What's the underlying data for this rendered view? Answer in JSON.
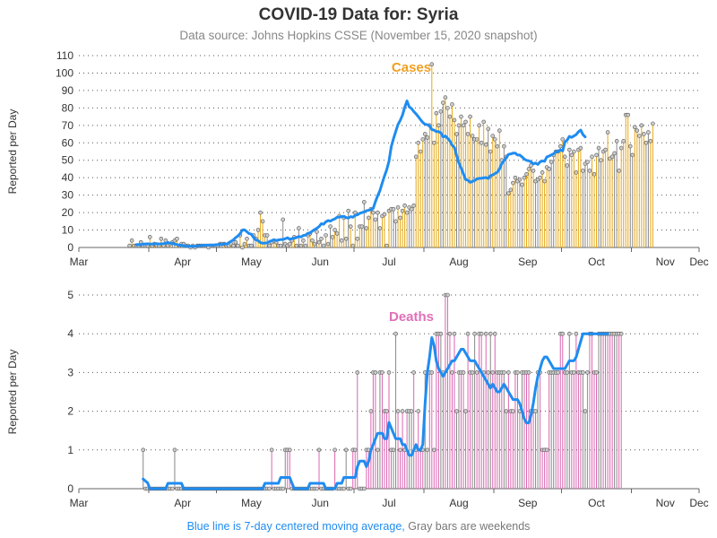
{
  "title": "COVID-19 Data for: Syria",
  "subtitle": "Data source: Johns Hopkins CSSE (November 15, 2020 snapshot)",
  "footnote": {
    "blue": "Blue line is 7-day centered moving average,",
    "gray": "Gray bars are weekends"
  },
  "colors": {
    "cases_bar": "#e6a817",
    "deaths_bar": "#d966b0",
    "weekend_bar": "#888888",
    "moving_avg": "#1f8cf0",
    "cases_label": "#f0a020",
    "deaths_label": "#e070b8",
    "marker_fill": "#cccccc",
    "grid": "#555555"
  },
  "chart_data": [
    {
      "type": "bar",
      "title": "Cases",
      "ylabel": "Reported per Day",
      "ylim": [
        0,
        110
      ],
      "yticks": [
        0,
        10,
        20,
        30,
        40,
        50,
        60,
        70,
        80,
        90,
        100,
        110
      ],
      "x_domain": [
        "2020-03-01",
        "2020-12-01"
      ],
      "x_tick_labels": [
        "Mar",
        "Apr",
        "May",
        "Jun",
        "Jul",
        "Aug",
        "Sep",
        "Oct",
        "Nov",
        "Dec"
      ],
      "grid": "horizontal dotted",
      "daily": {
        "start_date": "2020-03-23",
        "values": [
          1,
          4,
          1,
          1,
          1,
          3,
          1,
          1,
          1,
          6,
          1,
          2,
          1,
          1,
          5,
          1,
          4,
          1,
          2,
          3,
          4,
          5,
          1,
          2,
          2,
          1,
          1,
          0,
          1,
          0,
          1,
          1,
          1,
          1,
          1,
          0,
          1,
          1,
          1,
          1,
          2,
          2,
          2,
          1,
          1,
          2,
          1,
          3,
          1,
          7,
          0,
          2,
          5,
          1,
          1,
          7,
          5,
          10,
          20,
          15,
          7,
          7,
          1,
          3,
          4,
          3,
          1,
          1,
          16,
          2,
          1,
          2,
          4,
          6,
          1,
          11,
          1,
          4,
          1,
          7,
          8,
          4,
          2,
          9,
          3,
          5,
          1,
          7,
          2,
          12,
          6,
          10,
          8,
          18,
          4,
          17,
          5,
          21,
          12,
          1,
          20,
          5,
          12,
          12,
          26,
          11,
          17,
          22,
          20,
          16,
          20,
          11,
          18,
          19,
          1,
          21,
          22,
          22,
          15,
          23,
          17,
          21,
          24,
          20,
          23,
          22,
          24,
          52,
          60,
          55,
          62,
          65,
          63,
          70,
          105,
          60,
          77,
          70,
          78,
          83,
          86,
          80,
          75,
          82,
          73,
          65,
          70,
          75,
          70,
          72,
          65,
          75,
          64,
          62,
          62,
          70,
          60,
          72,
          59,
          68,
          55,
          64,
          62,
          58,
          67,
          50,
          58,
          52,
          31,
          33,
          37,
          40,
          38,
          39,
          36,
          40,
          42,
          45,
          47,
          44,
          38,
          39,
          40,
          43,
          38,
          46,
          45,
          49,
          53,
          55,
          55,
          58,
          62,
          52,
          47,
          56,
          53,
          55,
          43,
          56,
          57,
          44,
          48,
          49,
          44,
          52,
          42,
          53,
          57,
          50,
          55,
          56,
          66,
          51,
          52,
          54,
          61,
          44,
          57,
          61,
          76,
          76,
          58,
          53,
          69,
          67,
          64,
          70,
          65,
          60,
          66,
          61,
          71
        ]
      },
      "moving_average": {
        "start_date": "2020-03-26",
        "values": [
          1.7,
          1.7,
          1.7,
          2.0,
          2.0,
          2.1,
          1.9,
          2.0,
          2.0,
          2.2,
          2.0,
          2.1,
          2.2,
          2.4,
          2.9,
          2.4,
          2.4,
          1.9,
          1.7,
          1.3,
          1.3,
          1.0,
          0.7,
          0.7,
          0.7,
          0.7,
          0.7,
          1.0,
          1.1,
          1.1,
          1.3,
          1.3,
          1.4,
          1.4,
          1.3,
          1.6,
          1.6,
          1.9,
          1.7,
          2.1,
          1.9,
          2.7,
          3.6,
          4.3,
          5.6,
          6.6,
          7.9,
          10.0,
          10.1,
          9.0,
          7.9,
          7.6,
          5.6,
          4.3,
          3.9,
          2.8,
          2.4,
          2.5,
          2.6,
          3.4,
          3.9,
          4.4,
          4.0,
          4.3,
          4.6,
          4.6,
          5.0,
          5.6,
          4.7,
          5.1,
          5.3,
          5.7,
          6.3,
          6.0,
          6.9,
          7.1,
          8.1,
          8.4,
          9.3,
          10.3,
          11.0,
          12.0,
          13.6,
          13.3,
          14.7,
          15.4,
          15.1,
          15.9,
          16.4,
          17.3,
          17.4,
          17.7,
          17.9,
          17.1,
          16.9,
          17.7,
          17.3,
          18.4,
          18.7,
          19.6,
          20.0,
          20.4,
          21.0,
          21.4,
          21.7,
          22.4,
          26.3,
          29.7,
          32.6,
          37.0,
          41.0,
          44.6,
          49.4,
          57.6,
          62.3,
          66.4,
          70.6,
          72.9,
          75.9,
          80.4,
          84.0,
          80.6,
          79.6,
          77.9,
          76.6,
          75.0,
          73.3,
          71.7,
          70.6,
          70.4,
          69.7,
          67.6,
          67.3,
          66.4,
          66.4,
          65.7,
          63.4,
          63.9,
          62.6,
          61.1,
          58.6,
          57.3,
          52.6,
          48.6,
          45.6,
          42.3,
          38.9,
          38.6,
          37.3,
          37.9,
          38.4,
          39.3,
          39.6,
          39.7,
          39.9,
          40.1,
          39.6,
          41.1,
          41.6,
          42.4,
          43.1,
          45.0,
          48.1,
          49.7,
          51.4,
          53.4,
          53.6,
          54.1,
          54.1,
          53.0,
          53.0,
          51.9,
          50.7,
          49.9,
          49.7,
          49.1,
          47.9,
          48.4,
          47.6,
          49.1,
          49.6,
          49.4,
          51.9,
          52.4,
          53.1,
          53.7,
          55.0,
          55.0,
          55.9,
          55.3,
          60.4,
          61.6,
          63.7,
          63.1,
          63.9,
          64.7,
          66.3,
          67.3,
          64.7,
          63.4
        ]
      }
    },
    {
      "type": "bar",
      "title": "Deaths",
      "ylabel": "Reported per Day",
      "ylim": [
        0,
        5
      ],
      "yticks": [
        0,
        1,
        2,
        3,
        4,
        5
      ],
      "x_domain": [
        "2020-03-01",
        "2020-12-01"
      ],
      "x_tick_labels": [
        "Mar",
        "Apr",
        "May",
        "Jun",
        "Jul",
        "Aug",
        "Sep",
        "Oct",
        "Nov",
        "Dec"
      ],
      "grid": "horizontal dotted",
      "daily": {
        "start_date": "2020-03-29",
        "values": [
          1,
          0,
          0,
          0,
          0,
          0,
          0,
          0,
          0,
          0,
          0,
          0,
          0,
          0,
          1,
          0,
          0,
          0,
          0,
          0,
          0,
          0,
          0,
          0,
          0,
          0,
          0,
          0,
          0,
          0,
          0,
          0,
          0,
          0,
          0,
          0,
          0,
          0,
          0,
          0,
          0,
          0,
          0,
          0,
          0,
          0,
          0,
          0,
          0,
          0,
          0,
          0,
          0,
          0,
          0,
          0,
          0,
          1,
          0,
          0,
          0,
          0,
          0,
          1,
          1,
          1,
          0,
          0,
          0,
          0,
          0,
          0,
          0,
          0,
          0,
          0,
          0,
          0,
          1,
          0,
          0,
          0,
          0,
          0,
          0,
          1,
          0,
          0,
          0,
          0,
          1,
          0,
          0,
          1,
          1,
          3,
          0,
          0,
          0,
          1,
          1,
          2,
          3,
          3,
          1,
          3,
          3,
          2,
          2,
          3,
          1,
          1,
          4,
          2,
          1,
          2,
          1,
          2,
          2,
          2,
          3,
          1,
          2,
          1,
          1,
          3,
          1,
          3,
          3,
          1,
          4,
          4,
          4,
          3,
          5,
          5,
          4,
          3,
          4,
          2,
          3,
          3,
          3,
          2,
          4,
          3,
          3,
          4,
          3,
          4,
          4,
          3,
          4,
          3,
          4,
          3,
          4,
          3,
          3,
          3,
          3,
          2,
          3,
          2,
          2,
          3,
          3,
          2,
          3,
          3,
          3,
          3,
          2,
          2,
          2,
          3,
          3,
          1,
          1,
          1,
          3,
          3,
          3,
          3,
          3,
          4,
          4,
          3,
          3,
          4,
          3,
          3,
          4,
          3,
          3,
          3,
          2,
          3,
          4,
          4,
          3,
          3,
          4,
          4,
          4,
          4,
          4,
          4,
          4,
          4,
          4,
          4,
          4
        ]
      },
      "moving_average": {
        "start_date": "2020-03-29",
        "values": [
          0.25,
          0.2,
          0.15,
          0.0,
          0.0,
          0.0,
          0.0,
          0.0,
          0.0,
          0.0,
          0.0,
          0.14,
          0.14,
          0.14,
          0.14,
          0.14,
          0.14,
          0.14,
          0.0,
          0.0,
          0.0,
          0.0,
          0.0,
          0.0,
          0.0,
          0.0,
          0.0,
          0.0,
          0.0,
          0.0,
          0.0,
          0.0,
          0.0,
          0.0,
          0.0,
          0.0,
          0.0,
          0.0,
          0.0,
          0.0,
          0.0,
          0.0,
          0.0,
          0.0,
          0.0,
          0.0,
          0.0,
          0.0,
          0.0,
          0.0,
          0.0,
          0.0,
          0.0,
          0.0,
          0.14,
          0.14,
          0.14,
          0.14,
          0.14,
          0.14,
          0.14,
          0.29,
          0.29,
          0.29,
          0.29,
          0.29,
          0.14,
          0.0,
          0.0,
          0.0,
          0.0,
          0.0,
          0.0,
          0.0,
          0.14,
          0.14,
          0.14,
          0.14,
          0.14,
          0.14,
          0.14,
          0.0,
          0.0,
          0.0,
          0.0,
          0.0,
          0.14,
          0.14,
          0.14,
          0.29,
          0.29,
          0.29,
          0.29,
          0.29,
          0.29,
          0.57,
          0.71,
          0.71,
          0.71,
          0.57,
          0.71,
          1.0,
          1.14,
          1.29,
          1.43,
          1.43,
          1.43,
          1.29,
          1.29,
          1.71,
          1.57,
          1.43,
          1.29,
          1.29,
          1.29,
          1.14,
          1.14,
          1.0,
          0.86,
          0.86,
          1.0,
          1.14,
          1.0,
          1.0,
          1.14,
          2.2,
          3.0,
          3.4,
          3.9,
          3.7,
          3.3,
          3.1,
          3.0,
          2.9,
          3.0,
          3.1,
          3.2,
          3.3,
          3.3,
          3.4,
          3.5,
          3.6,
          3.6,
          3.5,
          3.4,
          3.3,
          3.3,
          3.3,
          3.2,
          3.1,
          3.0,
          2.9,
          2.8,
          2.7,
          2.6,
          2.7,
          2.6,
          2.5,
          2.5,
          2.6,
          2.7,
          2.6,
          2.5,
          2.4,
          2.3,
          2.3,
          2.3,
          2.2,
          2.0,
          1.8,
          1.7,
          1.7,
          1.9,
          2.2,
          2.6,
          2.9,
          3.1,
          3.3,
          3.4,
          3.4,
          3.3,
          3.2,
          3.1,
          3.1,
          3.1,
          3.1,
          3.1,
          3.1,
          3.2,
          3.3,
          3.3,
          3.3,
          3.4,
          3.6,
          3.8,
          4.0,
          4.0,
          4.0,
          4.0,
          4.0,
          4.0,
          4.0,
          4.0,
          4.0,
          4.0,
          4.0,
          4.0
        ]
      }
    }
  ]
}
